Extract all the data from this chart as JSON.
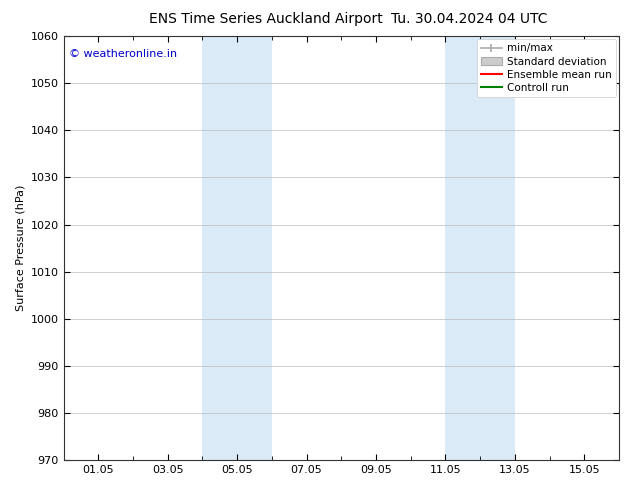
{
  "title_left": "ENS Time Series Auckland Airport",
  "title_right": "Tu. 30.04.2024 04 UTC",
  "ylabel": "Surface Pressure (hPa)",
  "ylim": [
    970,
    1060
  ],
  "yticks": [
    970,
    980,
    990,
    1000,
    1010,
    1020,
    1030,
    1040,
    1050,
    1060
  ],
  "xlim": [
    0,
    16
  ],
  "xtick_labels": [
    "01.05",
    "03.05",
    "05.05",
    "07.05",
    "09.05",
    "11.05",
    "13.05",
    "15.05"
  ],
  "xtick_positions": [
    1,
    3,
    5,
    7,
    9,
    11,
    13,
    15
  ],
  "shaded_bands": [
    {
      "x_start": 4.0,
      "x_end": 6.0,
      "color": "#daeaf7"
    },
    {
      "x_start": 11.0,
      "x_end": 13.0,
      "color": "#daeaf7"
    }
  ],
  "legend_entries": [
    {
      "label": "min/max",
      "color": "#aaaaaa",
      "style": "line_with_caps"
    },
    {
      "label": "Standard deviation",
      "color": "#cccccc",
      "style": "bar"
    },
    {
      "label": "Ensemble mean run",
      "color": "#ff0000",
      "style": "line"
    },
    {
      "label": "Controll run",
      "color": "#008000",
      "style": "line"
    }
  ],
  "watermark_text": "© weatheronline.in",
  "watermark_color": "#0000cc",
  "bg_color": "#ffffff",
  "plot_bg_color": "#ffffff",
  "grid_color": "#bbbbbb",
  "title_fontsize": 10,
  "label_fontsize": 8,
  "tick_fontsize": 8,
  "legend_fontsize": 7.5
}
